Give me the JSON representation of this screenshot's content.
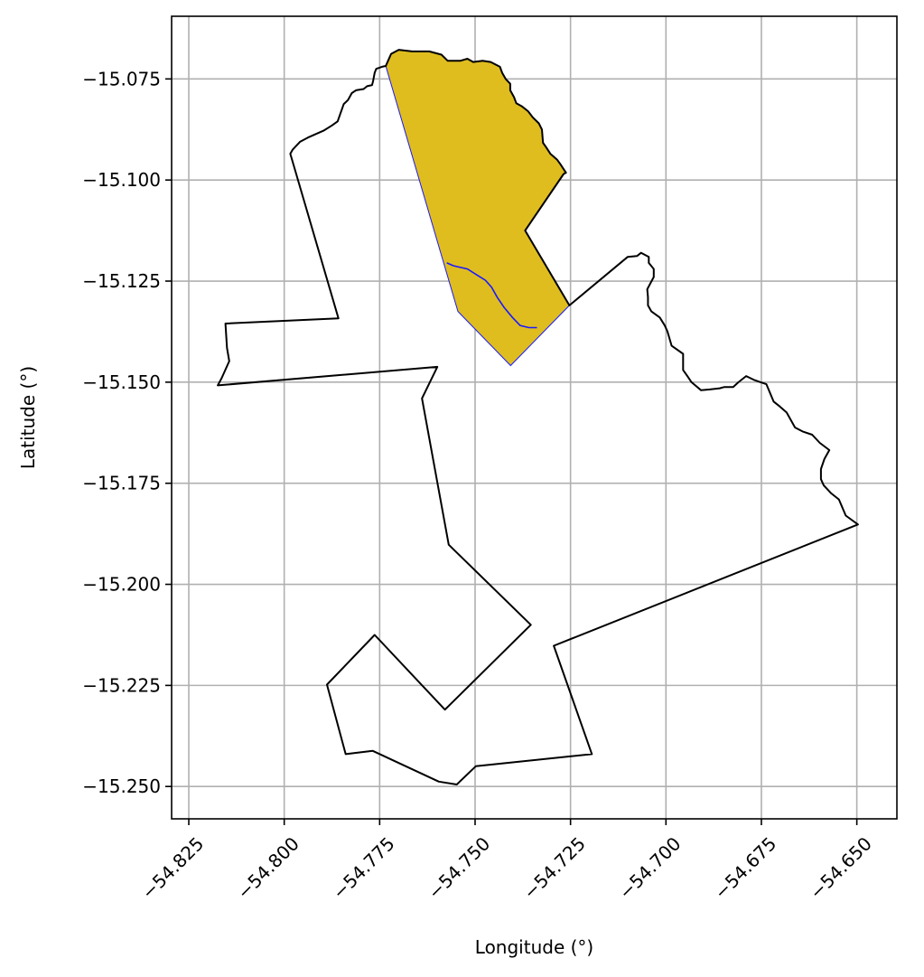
{
  "chart_data": {
    "type": "map",
    "xlabel": "Longitude (°)",
    "ylabel": "Latitude (°)",
    "xlim": [
      -54.8295,
      -54.6395
    ],
    "ylim": [
      -15.258,
      -15.0595
    ],
    "grid": true,
    "x_ticks": [
      -54.825,
      -54.8,
      -54.775,
      -54.75,
      -54.725,
      -54.7,
      -54.675,
      -54.65
    ],
    "x_tick_labels": [
      "−54.825",
      "−54.800",
      "−54.775",
      "−54.750",
      "−54.725",
      "−54.700",
      "−54.675",
      "−54.650"
    ],
    "y_ticks": [
      -15.075,
      -15.1,
      -15.125,
      -15.15,
      -15.175,
      -15.2,
      -15.225,
      -15.25
    ],
    "y_tick_labels": [
      "−15.075",
      "−15.100",
      "−15.125",
      "−15.150",
      "−15.175",
      "−15.200",
      "−15.225",
      "−15.250"
    ],
    "colors": {
      "region_fill": "#dfbd1f",
      "region_edge": "#1a1aff",
      "outline": "#000000",
      "river": "#1a1aff"
    },
    "outline_polygon": [
      [
        -54.7734,
        -15.0718
      ],
      [
        -54.7744,
        -15.072
      ],
      [
        -54.7759,
        -15.0725
      ],
      [
        -54.7763,
        -15.0735
      ],
      [
        -54.7767,
        -15.0755
      ],
      [
        -54.777,
        -15.0765
      ],
      [
        -54.7783,
        -15.0768
      ],
      [
        -54.7792,
        -15.0775
      ],
      [
        -54.7812,
        -15.0778
      ],
      [
        -54.7823,
        -15.0785
      ],
      [
        -54.7833,
        -15.0802
      ],
      [
        -54.7844,
        -15.0812
      ],
      [
        -54.786,
        -15.0855
      ],
      [
        -54.7875,
        -15.0865
      ],
      [
        -54.7897,
        -15.0878
      ],
      [
        -54.7938,
        -15.0895
      ],
      [
        -54.7958,
        -15.0905
      ],
      [
        -54.7978,
        -15.0925
      ],
      [
        -54.7984,
        -15.0935
      ],
      [
        -54.7858,
        -15.1342
      ],
      [
        -54.8154,
        -15.1355
      ],
      [
        -54.815,
        -15.1415
      ],
      [
        -54.8144,
        -15.1448
      ],
      [
        -54.8164,
        -15.149
      ],
      [
        -54.8174,
        -15.1508
      ],
      [
        -54.7599,
        -15.1462
      ],
      [
        -54.7639,
        -15.154
      ],
      [
        -54.7569,
        -15.1902
      ],
      [
        -54.7354,
        -15.21
      ],
      [
        -54.7579,
        -15.231
      ],
      [
        -54.7763,
        -15.2125
      ],
      [
        -54.7888,
        -15.2248
      ],
      [
        -54.7839,
        -15.242
      ],
      [
        -54.7768,
        -15.2412
      ],
      [
        -54.7595,
        -15.2488
      ],
      [
        -54.7548,
        -15.2495
      ],
      [
        -54.7498,
        -15.245
      ],
      [
        -54.7194,
        -15.242
      ],
      [
        -54.7294,
        -15.2152
      ],
      [
        -54.6497,
        -15.1852
      ],
      [
        -54.6529,
        -15.183
      ],
      [
        -54.6547,
        -15.179
      ],
      [
        -54.6567,
        -15.1775
      ],
      [
        -54.6587,
        -15.1755
      ],
      [
        -54.6594,
        -15.174
      ],
      [
        -54.6594,
        -15.1715
      ],
      [
        -54.6585,
        -15.169
      ],
      [
        -54.6572,
        -15.1668
      ],
      [
        -54.6597,
        -15.165
      ],
      [
        -54.6617,
        -15.163
      ],
      [
        -54.6642,
        -15.1622
      ],
      [
        -54.6662,
        -15.1612
      ],
      [
        -54.6684,
        -15.1575
      ],
      [
        -54.6702,
        -15.156
      ],
      [
        -54.6718,
        -15.1548
      ],
      [
        -54.6737,
        -15.1505
      ],
      [
        -54.6752,
        -15.15
      ],
      [
        -54.6768,
        -15.1495
      ],
      [
        -54.679,
        -15.1485
      ],
      [
        -54.681,
        -15.15
      ],
      [
        -54.6824,
        -15.1512
      ],
      [
        -54.6847,
        -15.1512
      ],
      [
        -54.6859,
        -15.1515
      ],
      [
        -54.6885,
        -15.1518
      ],
      [
        -54.6908,
        -15.152
      ],
      [
        -54.6933,
        -15.15
      ],
      [
        -54.6944,
        -15.1485
      ],
      [
        -54.6955,
        -15.147
      ],
      [
        -54.6955,
        -15.145
      ],
      [
        -54.6955,
        -15.143
      ],
      [
        -54.6985,
        -15.141
      ],
      [
        -54.6996,
        -15.1375
      ],
      [
        -54.7003,
        -15.136
      ],
      [
        -54.7016,
        -15.134
      ],
      [
        -54.7038,
        -15.1325
      ],
      [
        -54.7047,
        -15.131
      ],
      [
        -54.7047,
        -15.129
      ],
      [
        -54.7049,
        -15.127
      ],
      [
        -54.7032,
        -15.124
      ],
      [
        -54.7032,
        -15.122
      ],
      [
        -54.7045,
        -15.1205
      ],
      [
        -54.7045,
        -15.119
      ],
      [
        -54.7065,
        -15.118
      ],
      [
        -54.7076,
        -15.1188
      ],
      [
        -54.71,
        -15.119
      ],
      [
        -54.7253,
        -15.131
      ],
      [
        -54.7369,
        -15.1125
      ],
      [
        -54.7268,
        -15.0985
      ],
      [
        -54.7262,
        -15.0982
      ],
      [
        -54.7277,
        -15.096
      ],
      [
        -54.7285,
        -15.095
      ],
      [
        -54.7303,
        -15.0935
      ],
      [
        -54.7313,
        -15.092
      ],
      [
        -54.7322,
        -15.0908
      ],
      [
        -54.7325,
        -15.0875
      ],
      [
        -54.7333,
        -15.086
      ],
      [
        -54.7349,
        -15.0845
      ],
      [
        -54.7361,
        -15.083
      ],
      [
        -54.7377,
        -15.0818
      ],
      [
        -54.7392,
        -15.081
      ],
      [
        -54.7398,
        -15.0795
      ],
      [
        -54.7408,
        -15.0778
      ],
      [
        -54.7408,
        -15.0762
      ],
      [
        -54.742,
        -15.075
      ],
      [
        -54.7429,
        -15.0735
      ],
      [
        -54.7435,
        -15.072
      ],
      [
        -54.7459,
        -15.0708
      ],
      [
        -54.748,
        -15.0705
      ],
      [
        -54.7505,
        -15.0708
      ],
      [
        -54.752,
        -15.07
      ],
      [
        -54.7538,
        -15.0705
      ],
      [
        -54.7572,
        -15.0705
      ],
      [
        -54.7588,
        -15.069
      ],
      [
        -54.762,
        -15.0682
      ],
      [
        -54.7665,
        -15.0682
      ],
      [
        -54.77,
        -15.0678
      ],
      [
        -54.772,
        -15.0688
      ]
    ],
    "highlighted_region": [
      [
        -54.7734,
        -15.0718
      ],
      [
        -54.772,
        -15.0688
      ],
      [
        -54.77,
        -15.0678
      ],
      [
        -54.7665,
        -15.0682
      ],
      [
        -54.762,
        -15.0682
      ],
      [
        -54.7588,
        -15.069
      ],
      [
        -54.7572,
        -15.0705
      ],
      [
        -54.7538,
        -15.0705
      ],
      [
        -54.752,
        -15.07
      ],
      [
        -54.7505,
        -15.0708
      ],
      [
        -54.748,
        -15.0705
      ],
      [
        -54.7459,
        -15.0708
      ],
      [
        -54.7435,
        -15.072
      ],
      [
        -54.7429,
        -15.0735
      ],
      [
        -54.742,
        -15.075
      ],
      [
        -54.7408,
        -15.0762
      ],
      [
        -54.7408,
        -15.0778
      ],
      [
        -54.7398,
        -15.0795
      ],
      [
        -54.7392,
        -15.081
      ],
      [
        -54.7377,
        -15.0818
      ],
      [
        -54.7361,
        -15.083
      ],
      [
        -54.7349,
        -15.0845
      ],
      [
        -54.7333,
        -15.086
      ],
      [
        -54.7325,
        -15.0875
      ],
      [
        -54.7322,
        -15.0908
      ],
      [
        -54.7313,
        -15.092
      ],
      [
        -54.7303,
        -15.0935
      ],
      [
        -54.7285,
        -15.095
      ],
      [
        -54.7277,
        -15.096
      ],
      [
        -54.7262,
        -15.0982
      ],
      [
        -54.7268,
        -15.0985
      ],
      [
        -54.7369,
        -15.1125
      ],
      [
        -54.7253,
        -15.131
      ],
      [
        -54.7407,
        -15.1459
      ],
      [
        -54.7545,
        -15.1325
      ]
    ],
    "river_line": [
      [
        -54.7574,
        -15.1205
      ],
      [
        -54.7557,
        -15.1212
      ],
      [
        -54.752,
        -15.122
      ],
      [
        -54.7495,
        -15.1235
      ],
      [
        -54.7473,
        -15.1248
      ],
      [
        -54.7457,
        -15.1265
      ],
      [
        -54.7442,
        -15.129
      ],
      [
        -54.7424,
        -15.1315
      ],
      [
        -54.7402,
        -15.134
      ],
      [
        -54.7382,
        -15.136
      ],
      [
        -54.7359,
        -15.1365
      ],
      [
        -54.7338,
        -15.1365
      ]
    ]
  }
}
